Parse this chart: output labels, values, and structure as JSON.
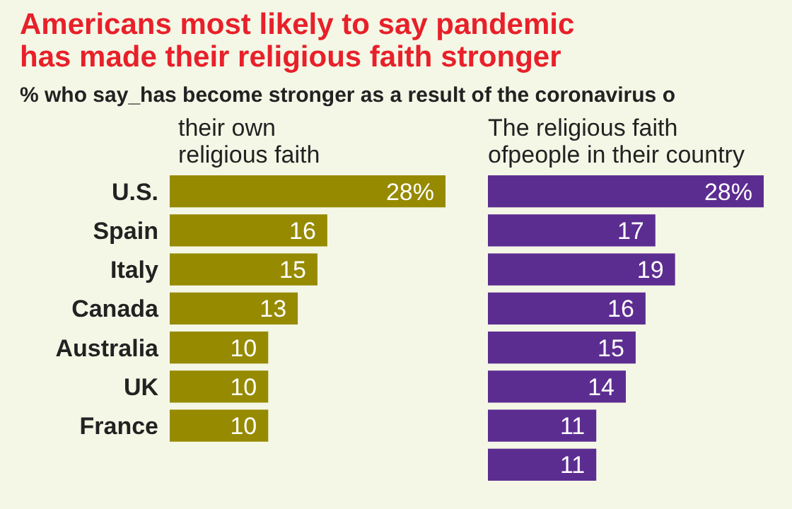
{
  "chart_data": [
    {
      "type": "bar",
      "title": "Americans most likely to say pandemic has made their religious faith stronger",
      "subtitle": "% who say_has become stronger as a result of the coronavirus o",
      "xlabel": "their own religious faith",
      "orientation": "horizontal",
      "tick_labels": "y",
      "categories": [
        "U.S.",
        "Spain",
        "Italy",
        "Canada",
        "Australia",
        "UK",
        "France",
        null
      ],
      "series": [
        {
          "color": "#968a00",
          "values": [
            28,
            16,
            15,
            13,
            10,
            10,
            10,
            null
          ],
          "value_labels": [
            "28%",
            "16",
            "15",
            "13",
            "10",
            "10",
            "10",
            null
          ]
        }
      ]
    },
    {
      "type": "bar",
      "xlabel": "The religious faith ofpeople in their country",
      "orientation": "horizontal",
      "tick_labels": false,
      "categories": [
        null,
        null,
        null,
        null,
        null,
        null,
        null,
        null
      ],
      "series": [
        {
          "color": "#5c2d91",
          "values": [
            28,
            17,
            19,
            16,
            15,
            14,
            11,
            11
          ],
          "value_labels": [
            "28%",
            "17",
            "19",
            "16",
            "15",
            "14",
            "11",
            "11"
          ]
        }
      ]
    }
  ]
}
